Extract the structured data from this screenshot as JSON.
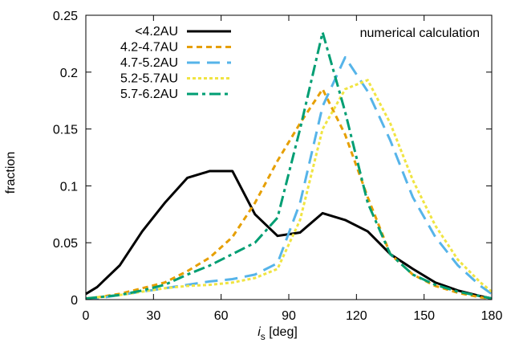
{
  "chart_data": {
    "type": "line",
    "title": "",
    "xlabel_main": "i",
    "xlabel_sub": "s",
    "xlabel_unit": " [deg]",
    "ylabel": "fraction",
    "xlim": [
      0,
      180
    ],
    "ylim": [
      0,
      0.25
    ],
    "xticks": [
      0,
      30,
      60,
      90,
      120,
      150,
      180
    ],
    "xtick_labels": [
      "0",
      "30",
      "60",
      "90",
      "120",
      "150",
      "180"
    ],
    "yticks": [
      0,
      0.05,
      0.1,
      0.15,
      0.2,
      0.25
    ],
    "ytick_labels": [
      "0",
      "0.05",
      "0.1",
      "0.15",
      "0.2",
      "0.25"
    ],
    "grid": false,
    "legend_position": "top-left",
    "annotation": "numerical calculation",
    "series": [
      {
        "name": "<4.2AU",
        "color": "#000000",
        "dash": "solid",
        "x": [
          0,
          5,
          15,
          25,
          35,
          45,
          55,
          65,
          75,
          85,
          95,
          105,
          115,
          125,
          135,
          145,
          155,
          165,
          175,
          180
        ],
        "y": [
          0.005,
          0.011,
          0.03,
          0.06,
          0.085,
          0.107,
          0.113,
          0.113,
          0.075,
          0.056,
          0.059,
          0.076,
          0.07,
          0.06,
          0.04,
          0.027,
          0.015,
          0.008,
          0.003,
          0.001
        ]
      },
      {
        "name": "4.2-4.7AU",
        "color": "#E69F00",
        "dash": "short",
        "x": [
          0,
          5,
          15,
          25,
          35,
          45,
          55,
          65,
          75,
          85,
          95,
          105,
          115,
          125,
          135,
          145,
          155,
          165,
          175,
          180
        ],
        "y": [
          0.001,
          0.002,
          0.005,
          0.01,
          0.015,
          0.025,
          0.037,
          0.055,
          0.085,
          0.122,
          0.155,
          0.185,
          0.145,
          0.09,
          0.04,
          0.022,
          0.012,
          0.006,
          0.002,
          0.001
        ]
      },
      {
        "name": "4.7-5.2AU",
        "color": "#56B4E9",
        "dash": "long",
        "x": [
          0,
          5,
          15,
          25,
          35,
          45,
          55,
          65,
          75,
          85,
          95,
          105,
          115,
          125,
          135,
          145,
          155,
          165,
          175,
          180
        ],
        "y": [
          0.001,
          0.001,
          0.004,
          0.007,
          0.01,
          0.013,
          0.016,
          0.018,
          0.022,
          0.032,
          0.085,
          0.17,
          0.213,
          0.183,
          0.14,
          0.09,
          0.055,
          0.03,
          0.012,
          0.005
        ]
      },
      {
        "name": "5.2-5.7AU",
        "color": "#F0E442",
        "dash": "dotted",
        "x": [
          0,
          5,
          15,
          25,
          35,
          45,
          55,
          65,
          75,
          85,
          95,
          105,
          115,
          125,
          135,
          145,
          155,
          165,
          175,
          180
        ],
        "y": [
          0.001,
          0.002,
          0.004,
          0.007,
          0.01,
          0.012,
          0.013,
          0.015,
          0.019,
          0.027,
          0.07,
          0.15,
          0.185,
          0.193,
          0.155,
          0.105,
          0.065,
          0.035,
          0.015,
          0.007
        ]
      },
      {
        "name": "5.7-6.2AU",
        "color": "#009E73",
        "dash": "dashdot",
        "x": [
          0,
          5,
          15,
          25,
          35,
          45,
          55,
          65,
          75,
          85,
          95,
          105,
          115,
          125,
          135,
          145,
          155,
          165,
          175,
          180
        ],
        "y": [
          0.001,
          0.002,
          0.004,
          0.008,
          0.013,
          0.022,
          0.03,
          0.04,
          0.05,
          0.072,
          0.15,
          0.235,
          0.165,
          0.085,
          0.04,
          0.022,
          0.013,
          0.007,
          0.003,
          0.001
        ]
      }
    ]
  }
}
